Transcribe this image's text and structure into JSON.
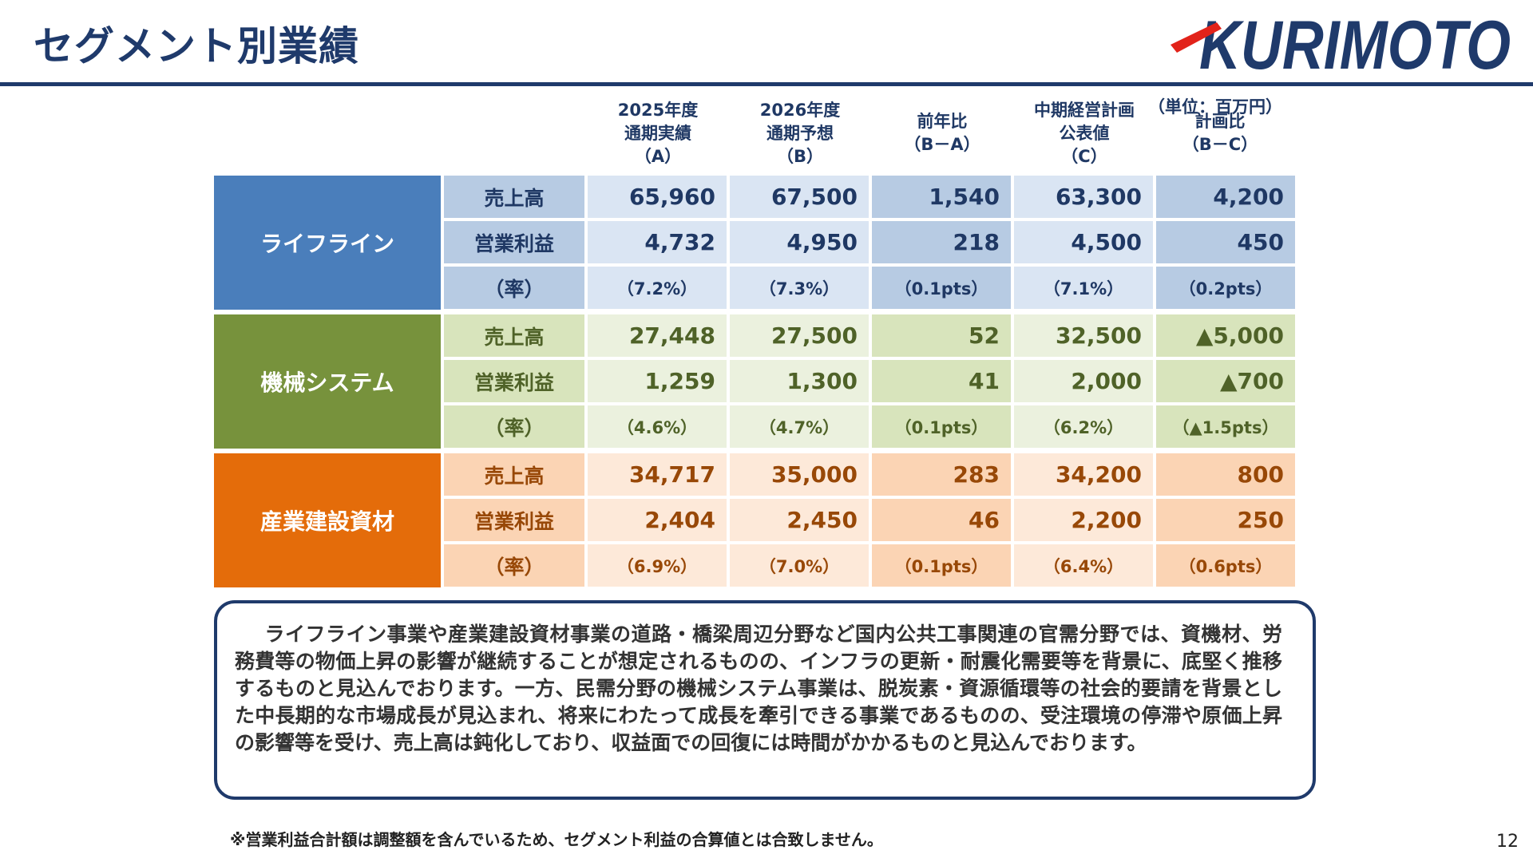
{
  "header": {
    "title": "セグメント別業績",
    "logo_text": "KURIMOTO"
  },
  "unit_note": "（単位：百万円）",
  "columns": [
    {
      "lines": [
        "2025年度",
        "通期実績",
        "（A）"
      ]
    },
    {
      "lines": [
        "2026年度",
        "通期予想",
        "（B）"
      ]
    },
    {
      "lines": [
        "前年比",
        "（B－A）"
      ]
    },
    {
      "lines": [
        "中期経営計画",
        "公表値",
        "（C）"
      ]
    },
    {
      "lines": [
        "計画比",
        "（B－C）"
      ]
    }
  ],
  "segments": [
    {
      "name": "ライフライン",
      "colors": {
        "label_bg": "#4a7ebb",
        "light": "#dae5f3",
        "dark": "#b7cbe3",
        "text": "#1f3864"
      },
      "rows": [
        {
          "item": "売上高",
          "values": [
            "65,960",
            "67,500",
            "1,540",
            "63,300",
            "4,200"
          ]
        },
        {
          "item": "営業利益",
          "values": [
            "4,732",
            "4,950",
            "218",
            "4,500",
            "450"
          ]
        },
        {
          "item": "（率）",
          "values": [
            "（7.2%）",
            "（7.3%）",
            "（0.1pts）",
            "（7.1%）",
            "（0.2pts）"
          ]
        }
      ]
    },
    {
      "name": "機械システム",
      "colors": {
        "label_bg": "#77923c",
        "light": "#ebf1de",
        "dark": "#d8e4bc",
        "text": "#4f6228"
      },
      "rows": [
        {
          "item": "売上高",
          "values": [
            "27,448",
            "27,500",
            "52",
            "32,500",
            "▲5,000"
          ]
        },
        {
          "item": "営業利益",
          "values": [
            "1,259",
            "1,300",
            "41",
            "2,000",
            "▲700"
          ]
        },
        {
          "item": "（率）",
          "values": [
            "（4.6%）",
            "（4.7%）",
            "（0.1pts）",
            "（6.2%）",
            "（▲1.5pts）"
          ]
        }
      ]
    },
    {
      "name": "産業建設資材",
      "colors": {
        "label_bg": "#e46c0a",
        "light": "#fde9d9",
        "dark": "#fbd4b4",
        "text": "#984807"
      },
      "rows": [
        {
          "item": "売上高",
          "values": [
            "34,717",
            "35,000",
            "283",
            "34,200",
            "800"
          ]
        },
        {
          "item": "営業利益",
          "values": [
            "2,404",
            "2,450",
            "46",
            "2,200",
            "250"
          ]
        },
        {
          "item": "（率）",
          "values": [
            "（6.9%）",
            "（7.0%）",
            "（0.1pts）",
            "（6.4%）",
            "（0.6pts）"
          ]
        }
      ]
    }
  ],
  "commentary": "ライフライン事業や産業建設資材事業の道路・橋梁周辺分野など国内公共工事関連の官需分野では、資機材、労務費等の物価上昇の影響が継続することが想定されるものの、インフラの更新・耐震化需要等を背景に、底堅く推移するものと見込んでおります。一方、民需分野の機械システム事業は、脱炭素・資源循環等の社会的要請を背景とした中長期的な市場成長が見込まれ、将来にわたって成長を牽引できる事業であるものの、受注環境の停滞や原価上昇の影響等を受け、売上高は鈍化しており、収益面での回復には時間がかかるものと見込んでおります。",
  "footnote": "※営業利益合計額は調整額を含んでいるため、セグメント利益の合算値とは合致しません。",
  "page_number": "12",
  "colors": {
    "brand_navy": "#1f3a6b",
    "brand_red": "#e2231a"
  }
}
